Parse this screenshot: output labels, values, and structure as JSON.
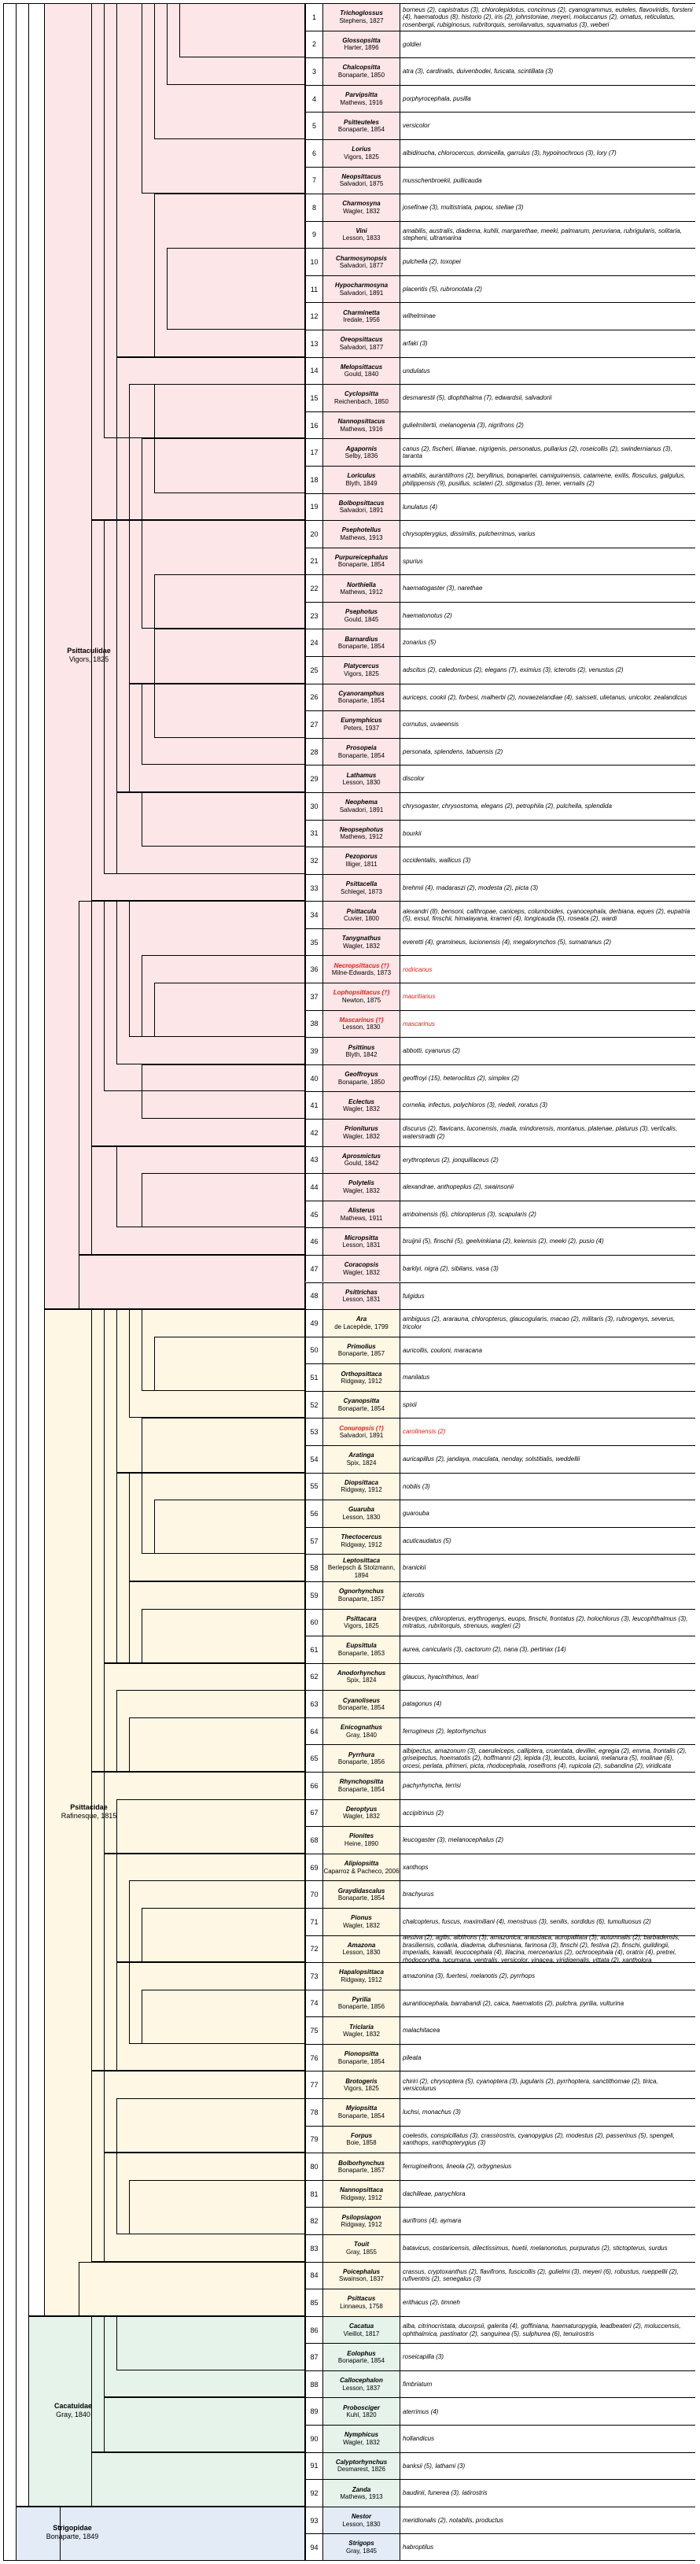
{
  "colors": {
    "psittaculidae": "#fde6e8",
    "psittacidae": "#fdf7e4",
    "cacatuidae": "#e5f3ea",
    "strigopidae": "#e2ebf6",
    "extinct_text": "#e3201b",
    "line": "#000000"
  },
  "families": [
    {
      "key": "psittaculidae",
      "name": "Psittaculidae",
      "authority": "Vigors, 1825",
      "from": 1,
      "to": 48
    },
    {
      "key": "psittacidae",
      "name": "Psittacidae",
      "authority": "Rafinesque, 1815",
      "from": 49,
      "to": 85
    },
    {
      "key": "cacatuidae",
      "name": "Cacatuidae",
      "authority": "Gray, 1840",
      "from": 86,
      "to": 92
    },
    {
      "key": "strigopidae",
      "name": "Strigopidae",
      "authority": "Bonaparte, 1849",
      "from": 93,
      "to": 94
    }
  ],
  "genera": [
    {
      "n": 1,
      "name": "Trichoglossus",
      "authority": "Stephens, 1827",
      "species": "borneus (2), capistratus (3), chlorolepidotus, concinnus (2), cyanogrammus, euteles, flavoviridis, forsteni (4), haematodus (8), historio (2), iris (2), johnstoniae, meyeri, moluccanus (2), ornatus, reticulatus, rosenbergii, rubiginosus, rubritorquis, semilarvatus, squamatus (3), weberi"
    },
    {
      "n": 2,
      "name": "Glossopsitta",
      "authority": "Harter, 1896",
      "species": "goldiei"
    },
    {
      "n": 3,
      "name": "Chalcopsitta",
      "authority": "Bonaparte, 1850",
      "species": "atra (3), cardinalis, duivenbodei, fuscata, scintillata (3)"
    },
    {
      "n": 4,
      "name": "Parvipsitta",
      "authority": "Mathews, 1916",
      "species": "porphyrocephala, pusilla"
    },
    {
      "n": 5,
      "name": "Psitteuteles",
      "authority": "Bonaparte, 1854",
      "species": "versicolor"
    },
    {
      "n": 6,
      "name": "Lorius",
      "authority": "Vigors, 1825",
      "species": "albidinucha, chlorocercus, domicella, garrulus (3), hypoinochrous (3), lory (7)"
    },
    {
      "n": 7,
      "name": "Neopsittacus",
      "authority": "Salvadori, 1875",
      "species": "musschenbroekii, pullicauda"
    },
    {
      "n": 8,
      "name": "Charmosyna",
      "authority": "Wagler, 1832",
      "species": "josefinae (3), multistriata, papou, stellae (3)"
    },
    {
      "n": 9,
      "name": "Vini",
      "authority": "Lesson, 1833",
      "species": "amabilis, australis, diadema, kuhlii, margarethae, meeki, palmarum, peruviana, rubrigularis, solitaria, stepheni, ultramarina"
    },
    {
      "n": 10,
      "name": "Charmosynopsis",
      "authority": "Salvadori, 1877",
      "species": "pulchella (2), toxopei"
    },
    {
      "n": 11,
      "name": "Hypocharmosyna",
      "authority": "Salvadori, 1891",
      "species": "placentis (5), rubronotata (2)"
    },
    {
      "n": 12,
      "name": "Charminetta",
      "authority": "Iredale, 1956",
      "species": "wilhelminae"
    },
    {
      "n": 13,
      "name": "Oreopsittacus",
      "authority": "Salvadori, 1877",
      "species": "arfaki (3)"
    },
    {
      "n": 14,
      "name": "Melopsittacus",
      "authority": "Gould, 1840",
      "species": "undulatus"
    },
    {
      "n": 15,
      "name": "Cyclopsitta",
      "authority": "Reichenbach, 1850",
      "species": "desmarestii (5), diophthalma (7), edwardsii, salvadorii"
    },
    {
      "n": 16,
      "name": "Nannopsittacus",
      "authority": "Mathews, 1916",
      "species": "gulielmitertii, melanogenia (3), nigrifrons (2)"
    },
    {
      "n": 17,
      "name": "Agapornis",
      "authority": "Selby, 1836",
      "species": "canus (2), fischeri, lilianae, nigrigenis, personatus, pullarius (2), roseicollis (2), swindernianus (3), taranta"
    },
    {
      "n": 18,
      "name": "Loriculus",
      "authority": "Blyth, 1849",
      "species": "amabilis, aurantiifrons (2), beryllinus, bonapartei, camiguinensis, catamene, exilis, flosculus, galgulus, philippensis (9), pusillus, sclateri (2), stigmatus (3), tener, vernalis (2)"
    },
    {
      "n": 19,
      "name": "Bolbopsittacus",
      "authority": "Salvadori, 1891",
      "species": "lunulatus (4)"
    },
    {
      "n": 20,
      "name": "Psephotellus",
      "authority": "Mathews, 1913",
      "species": "chrysopterygius, dissimilis, pulcherrimus, varius"
    },
    {
      "n": 21,
      "name": "Purpureicephalus",
      "authority": "Bonaparte, 1854",
      "species": "spurius"
    },
    {
      "n": 22,
      "name": "Northiella",
      "authority": "Mathews, 1912",
      "species": "haematogaster (3), narethae"
    },
    {
      "n": 23,
      "name": "Psephotus",
      "authority": "Gould, 1845",
      "species": "haematonotus (2)"
    },
    {
      "n": 24,
      "name": "Barnardius",
      "authority": "Bonaparte, 1854",
      "species": "zonarius (5)"
    },
    {
      "n": 25,
      "name": "Platycercus",
      "authority": "Vigors, 1825",
      "species": "adscitus (2), caledonicus (2), elegans (7), eximius (3), icterotis (2), venustus (2)"
    },
    {
      "n": 26,
      "name": "Cyanoramphus",
      "authority": "Bonaparte, 1854",
      "species": "auriceps, cookii (2), forbesi, malherbi (2), novaezelandiae (4), saisseti, ulietanus, unicolor, zealandicus"
    },
    {
      "n": 27,
      "name": "Eunymphicus",
      "authority": "Peters, 1937",
      "species": "cornutus, uvaeensis"
    },
    {
      "n": 28,
      "name": "Prosopeia",
      "authority": "Bonaparte, 1854",
      "species": "personata, splendens, tabuensis (2)"
    },
    {
      "n": 29,
      "name": "Lathamus",
      "authority": "Lesson, 1830",
      "species": "discolor"
    },
    {
      "n": 30,
      "name": "Neophema",
      "authority": "Salvadori, 1891",
      "species": "chrysogaster, chrysostoma, elegans (2), petrophila (2), pulchella, splendida"
    },
    {
      "n": 31,
      "name": "Neopsephotus",
      "authority": "Mathews, 1912",
      "species": "bourkii"
    },
    {
      "n": 32,
      "name": "Pezoporus",
      "authority": "Illiger, 1811",
      "species": "occidentalis, wallicus (3)"
    },
    {
      "n": 33,
      "name": "Psittacella",
      "authority": "Schlegel, 1873",
      "species": "brehmii (4), madaraszi (2), modesta (2), picta (3)"
    },
    {
      "n": 34,
      "name": "Psittacula",
      "authority": "Cuvier, 1800",
      "species": "alexandri (8), bensoni, calthropae, caniceps, columboides, cyanocephala, derbiana, eques (2), eupatria (5), exsul, finschii, himalayana, krameri (4), longicauda (5), roseata (2), wardi"
    },
    {
      "n": 35,
      "name": "Tanygnathus",
      "authority": "Wagler, 1832",
      "species": "everetti (4), gramineus, lucionensis (4), megalorynchos (5), sumatranus (2)"
    },
    {
      "n": 36,
      "name": "Necropsittacus (†)",
      "authority": "Milne-Edwards, 1873",
      "species": "rodricanus",
      "extinct": true
    },
    {
      "n": 37,
      "name": "Lophopsittacus (†)",
      "authority": "Newton, 1875",
      "species": "mauritianus",
      "extinct": true
    },
    {
      "n": 38,
      "name": "Mascarinus (†)",
      "authority": "Lesson, 1830",
      "species": "mascarinus",
      "extinct": true
    },
    {
      "n": 39,
      "name": "Psittinus",
      "authority": "Blyth, 1842",
      "species": "abbotti, cyanurus (2)"
    },
    {
      "n": 40,
      "name": "Geoffroyus",
      "authority": "Bonaparte, 1850",
      "species": "geoffroyi (15), heteroclitus (2), simplex (2)"
    },
    {
      "n": 41,
      "name": "Eclectus",
      "authority": "Wagler, 1832",
      "species": "cornelia, infectus, polychloros (3), riedeli, roratus (3)"
    },
    {
      "n": 42,
      "name": "Prioniturus",
      "authority": "Wagler, 1832",
      "species": "discurus (2), flavicans, luconensis, mada, mindorensis, montanus, platenae, platurus (3), verticalis, waterstradti (2)"
    },
    {
      "n": 43,
      "name": "Aprosmictus",
      "authority": "Gould, 1842",
      "species": "erythropterus (2), jonquillaceus (2)"
    },
    {
      "n": 44,
      "name": "Polytelis",
      "authority": "Wagler, 1832",
      "species": "alexandrae, anthopeplus (2), swainsonii"
    },
    {
      "n": 45,
      "name": "Alisterus",
      "authority": "Mathews, 1911",
      "species": "amboinensis (6), chloropterus (3), scapularis (2)"
    },
    {
      "n": 46,
      "name": "Micropsitta",
      "authority": "Lesson, 1831",
      "species": "bruijnii (5), finschii (5), geelvinkiana (2), keiensis (2), meeki (2), pusio (4)"
    },
    {
      "n": 47,
      "name": "Coracopsis",
      "authority": "Wagler, 1832",
      "species": "barklyi, nigra (2), sibilans, vasa (3)"
    },
    {
      "n": 48,
      "name": "Psittrichas",
      "authority": "Lesson, 1831",
      "species": "fulgidus"
    },
    {
      "n": 49,
      "name": "Ara",
      "authority": "de Lacepède, 1799",
      "species": "ambiguus (2), ararauna, chloropterus, glaucogularis, macao (2), militaris (3), rubrogenys, severus, tricolor"
    },
    {
      "n": 50,
      "name": "Primolius",
      "authority": "Bonaparte, 1857",
      "species": "auricollis, couloni, maracana"
    },
    {
      "n": 51,
      "name": "Orthopsittaca",
      "authority": "Ridgway, 1912",
      "species": "manilatus"
    },
    {
      "n": 52,
      "name": "Cyanopsitta",
      "authority": "Bonaparte, 1854",
      "species": "spixii"
    },
    {
      "n": 53,
      "name": "Conuropsis (†)",
      "authority": "Salvadori, 1891",
      "species": "carolinensis (2)",
      "extinct": true
    },
    {
      "n": 54,
      "name": "Aratinga",
      "authority": "Spix, 1824",
      "species": "auricapillus (2), jandaya, maculata, nenday, solstitialis, weddellii"
    },
    {
      "n": 55,
      "name": "Diopsittaca",
      "authority": "Ridgway, 1912",
      "species": "nobilis (3)"
    },
    {
      "n": 56,
      "name": "Guaruba",
      "authority": "Lesson, 1830",
      "species": "guarouba"
    },
    {
      "n": 57,
      "name": "Thectocercus",
      "authority": "Ridgway, 1912",
      "species": "acuticaudatus (5)"
    },
    {
      "n": 58,
      "name": "Leptosittaca",
      "authority": "Berlepsch & Stolzmann, 1894",
      "species": "branickii"
    },
    {
      "n": 59,
      "name": "Ognorhynchus",
      "authority": "Bonaparte, 1857",
      "species": "icterotis"
    },
    {
      "n": 60,
      "name": "Psittacara",
      "authority": "Vigors, 1825",
      "species": "brevipes, chloropterus, erythrogenys, euops, finschi, frontatus (2), holochlorus (3), leucophthalmus (3), mitratus, rubritorquis, strenuus, wagleri (2)"
    },
    {
      "n": 61,
      "name": "Eupsittula",
      "authority": "Bonaparte, 1853",
      "species": "aurea, canicularis (3), cactorum (2), nana (3), pertinax (14)"
    },
    {
      "n": 62,
      "name": "Anodorhynchus",
      "authority": "Spix, 1824",
      "species": "glaucus, hyacinthinus, leari"
    },
    {
      "n": 63,
      "name": "Cyanoliseus",
      "authority": "Bonaparte, 1854",
      "species": "patagonus (4)"
    },
    {
      "n": 64,
      "name": "Enicognathus",
      "authority": "Gray, 1840",
      "species": "ferrugineus (2), leptorhynchus"
    },
    {
      "n": 65,
      "name": "Pyrrhura",
      "authority": "Bonaparte, 1856",
      "species": "albipectus, amazonum (3), caeruleiceps, calliptera, cruentata, devillei, egregia (2), emma, frontalis (2), griseipectus, hoematotis (2), hoffmanni (2), lepida (3), leucotis, lucianii, melanura (5), molinae (6), orcesi, perlata, pfrimeri, picta, rhodocephala, roseifrons (4), rupicola (2), subandina (2), viridicata"
    },
    {
      "n": 66,
      "name": "Rhynchopsitta",
      "authority": "Bonaparte, 1854",
      "species": "pachyrhyncha, terrisi"
    },
    {
      "n": 67,
      "name": "Deroptyus",
      "authority": "Wagler, 1832",
      "species": "accipitrinus (2)"
    },
    {
      "n": 68,
      "name": "Pionites",
      "authority": "Heine, 1890",
      "species": "leucogaster (3), melanocephalus (2)"
    },
    {
      "n": 69,
      "name": "Alipiopsitta",
      "authority": "Caparroz & Pacheco, 2006",
      "species": "xanthops"
    },
    {
      "n": 70,
      "name": "Graydidascalus",
      "authority": "Bonaparte, 1854",
      "species": "brachyurus"
    },
    {
      "n": 71,
      "name": "Pionus",
      "authority": "Wagler, 1832",
      "species": "chalcopterus, fuscus, maximiliani (4), menstruus (3), senilis, sordidus (6), tumultuosus (2)"
    },
    {
      "n": 72,
      "name": "Amazona",
      "authority": "Lesson, 1830",
      "species": "aestiva (2), agilis, albifrons (3), amazonica, arausiaca, auropalliata (3), autumnalis (2), barbadensis, brasiliensis, collaria, diadema, dufresniana, farinosa (3), finschi (2), festiva (2), finschi, guildingii, imperialis, kawalli, leucocephala (4), lilacina, mercenarius (2), ochrocephala (4), oratrix (4), pretrei, rhodocorytha, tucumana, ventralis, versicolor, vinacea, viridigenalis, vittata (2), xantholora"
    },
    {
      "n": 73,
      "name": "Hapalopsittaca",
      "authority": "Ridgway, 1912",
      "species": "amazonina (3), fuertesi, melanotis (2), pyrrhops"
    },
    {
      "n": 74,
      "name": "Pyrilia",
      "authority": "Bonaparte, 1856",
      "species": "aurantiocephala, barrabandi (2), caica, haematotis (2), pulchra, pyrilia, vulturina"
    },
    {
      "n": 75,
      "name": "Triclaria",
      "authority": "Wagler, 1832",
      "species": "malachitacea"
    },
    {
      "n": 76,
      "name": "Pionopsitta",
      "authority": "Bonaparte, 1854",
      "species": "pileata"
    },
    {
      "n": 77,
      "name": "Brotogeris",
      "authority": "Vigors, 1825",
      "species": "chiriri (2), chrysoptera (5), cyanoptera (3), jugularis (2), pyrrhoptera, sanctithomae (2), tirica, versicolurus"
    },
    {
      "n": 78,
      "name": "Myiopsitta",
      "authority": "Bonaparte, 1854",
      "species": "luchsi, monachus (3)"
    },
    {
      "n": 79,
      "name": "Forpus",
      "authority": "Boie, 1858",
      "species": "coelestis, conspicillatus (3), crassirostris, cyanopygius (2), modestus (2), passerinus (5), spengeli, xanthops, xanthopterygius (3)"
    },
    {
      "n": 80,
      "name": "Bolborhynchus",
      "authority": "Bonaparte, 1857",
      "species": "ferrugineifrons, lineola (2), orbygnesius"
    },
    {
      "n": 81,
      "name": "Nannopsittaca",
      "authority": "Ridgway, 1912",
      "species": "dachilleae, panychlora"
    },
    {
      "n": 82,
      "name": "Psilopsiagon",
      "authority": "Ridgway, 1912",
      "species": "aurifrons (4), aymara"
    },
    {
      "n": 83,
      "name": "Touit",
      "authority": "Gray, 1855",
      "species": "batavicus, costaricensis, dilectissimus, huetii, melanonotus, purpuratus (2), stictopterus, surdus"
    },
    {
      "n": 84,
      "name": "Poicephalus",
      "authority": "Swainson, 1837",
      "species": "crassus, cryptoxanthus (2), flavifrons, fuscicollis (2), gulielmi (3), meyeri (6), robustus, rueppellii (2), rufiventris (2), senegalus (3)"
    },
    {
      "n": 85,
      "name": "Psittacus",
      "authority": "Linnaeus, 1758",
      "species": "erithacus (2), timneh"
    },
    {
      "n": 86,
      "name": "Cacatua",
      "authority": "Vieillot, 1817",
      "species": "alba, citrinocristata, ducorpsii, galerita (4), goffiniana, haematuropygia, leadbeateri (2), moluccensis, ophthalmica, pastinator (2), sanguinea (5), sulphurea (6), tenuirostris"
    },
    {
      "n": 87,
      "name": "Eolophus",
      "authority": "Bonaparte, 1854",
      "species": "roseicapilla (3)"
    },
    {
      "n": 88,
      "name": "Callocephalon",
      "authority": "Lesson, 1837",
      "species": "fimbriatum"
    },
    {
      "n": 89,
      "name": "Probosciger",
      "authority": "Kuhl, 1820",
      "species": "aterrimus (4)"
    },
    {
      "n": 90,
      "name": "Nymphicus",
      "authority": "Wagler, 1832",
      "species": "hollandicus"
    },
    {
      "n": 91,
      "name": "Calyptorhynchus",
      "authority": "Desmarest, 1826",
      "species": "banksii (5), lathami (3)"
    },
    {
      "n": 92,
      "name": "Zanda",
      "authority": "Mathews, 1913",
      "species": "baudinii, funerea (3), latirostris"
    },
    {
      "n": 93,
      "name": "Nestor",
      "authority": "Lesson, 1830",
      "species": "meridionalis (2), notabilis, productus"
    },
    {
      "n": 94,
      "name": "Strigops",
      "authority": "Gray, 1845",
      "species": "habroptilus"
    }
  ]
}
